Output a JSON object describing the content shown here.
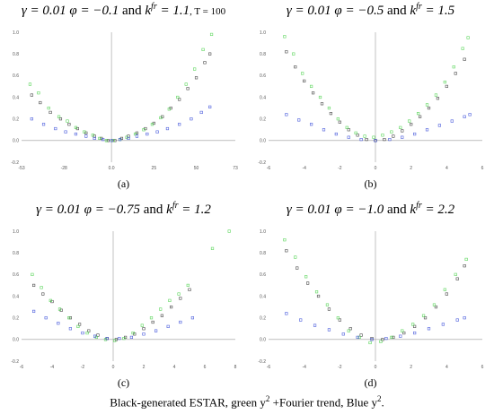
{
  "figure": {
    "caption_text": "Black-generated ESTAR, green y",
    "caption_sup1": "2",
    "caption_mid": " +Fourier trend, Blue y",
    "caption_sup2": "2",
    "caption_end": "."
  },
  "colors": {
    "black": "#2b2b2b",
    "green": "#3fcf3f",
    "blue": "#2a3fd6",
    "axis": "#9a9a9a"
  },
  "chart_data": [
    {
      "type": "scatter",
      "label": "(a)",
      "title_gamma": "γ = 0.01",
      "title_phi": "φ = −0.1",
      "title_and": "and",
      "title_k": "k",
      "title_ksup": "fr",
      "title_kval": "= 1.1",
      "title_extra": ", T = 100",
      "xlim": [
        -53,
        73
      ],
      "ylim": [
        -0.2,
        1.0
      ],
      "xticks": [
        -53,
        -28,
        0,
        25,
        50,
        73
      ],
      "xtick_labels": [
        "-53",
        "-28",
        "0.0",
        "25",
        "50",
        "73"
      ],
      "yticks": [
        -0.2,
        0.0,
        0.2,
        0.4,
        0.6,
        0.8,
        1.0
      ],
      "ytick_labels": [
        "-0.2",
        "0.0",
        "0.2",
        "0.4",
        "0.6",
        "0.8",
        "1.0"
      ],
      "grid": false,
      "series": [
        {
          "color_key": "black",
          "x": [
            -47,
            -42,
            -36,
            -30,
            -25,
            -20,
            -15,
            -10,
            -6,
            -2,
            2,
            6,
            10,
            15,
            20,
            25,
            30,
            35,
            40,
            45,
            50,
            55,
            58
          ],
          "y": [
            0.42,
            0.35,
            0.26,
            0.2,
            0.15,
            0.11,
            0.07,
            0.04,
            0.02,
            0.0,
            0.0,
            0.02,
            0.04,
            0.07,
            0.11,
            0.16,
            0.22,
            0.3,
            0.38,
            0.48,
            0.58,
            0.72,
            0.8
          ]
        },
        {
          "color_key": "green",
          "x": [
            -48,
            -43,
            -37,
            -31,
            -26,
            -21,
            -16,
            -11,
            -7,
            -3,
            1,
            5,
            9,
            14,
            19,
            24,
            29,
            34,
            39,
            44,
            49,
            54,
            59
          ],
          "y": [
            0.52,
            0.44,
            0.3,
            0.22,
            0.18,
            0.12,
            0.08,
            0.05,
            0.02,
            0.0,
            0.0,
            0.01,
            0.03,
            0.06,
            0.1,
            0.15,
            0.21,
            0.29,
            0.4,
            0.52,
            0.66,
            0.84,
            0.98
          ]
        },
        {
          "color_key": "blue",
          "x": [
            -47,
            -40,
            -33,
            -27,
            -21,
            -15,
            -10,
            -5,
            0,
            5,
            10,
            15,
            21,
            27,
            33,
            40,
            47,
            53,
            58
          ],
          "y": [
            0.2,
            0.15,
            0.11,
            0.08,
            0.06,
            0.04,
            0.02,
            0.01,
            0.0,
            0.01,
            0.02,
            0.04,
            0.06,
            0.08,
            0.11,
            0.15,
            0.2,
            0.26,
            0.31
          ]
        }
      ]
    },
    {
      "type": "scatter",
      "label": "(b)",
      "title_gamma": "γ = 0.01",
      "title_phi": "φ = −0.5",
      "title_and": "and",
      "title_k": "k",
      "title_ksup": "fr",
      "title_kval": "= 1.5",
      "title_extra": "",
      "xlim": [
        -6,
        6
      ],
      "ylim": [
        -0.2,
        1.0
      ],
      "xticks": [
        -6,
        -4,
        -2,
        0,
        2,
        4,
        6
      ],
      "xtick_labels": [
        "-6",
        "-4",
        "-2",
        "0",
        "2",
        "4",
        "6"
      ],
      "yticks": [
        -0.2,
        0.0,
        0.2,
        0.4,
        0.6,
        0.8,
        1.0
      ],
      "ytick_labels": [
        "-0.2",
        "0.0",
        "0.2",
        "0.4",
        "0.6",
        "0.8",
        "1.0"
      ],
      "grid": false,
      "series": [
        {
          "color_key": "black",
          "x": [
            -5.0,
            -4.5,
            -4.0,
            -3.5,
            -3.0,
            -2.5,
            -2.0,
            -1.5,
            -1.0,
            -0.5,
            0.0,
            0.5,
            1.0,
            1.5,
            2.0,
            2.5,
            3.0,
            3.5,
            4.0,
            4.5,
            5.0
          ],
          "y": [
            0.82,
            0.68,
            0.55,
            0.44,
            0.34,
            0.25,
            0.17,
            0.1,
            0.05,
            0.01,
            0.0,
            0.01,
            0.04,
            0.09,
            0.15,
            0.22,
            0.3,
            0.39,
            0.5,
            0.62,
            0.75
          ]
        },
        {
          "color_key": "green",
          "x": [
            -5.1,
            -4.6,
            -4.1,
            -3.6,
            -3.1,
            -2.6,
            -2.1,
            -1.6,
            -1.1,
            -0.6,
            -0.1,
            0.4,
            0.9,
            1.4,
            1.9,
            2.4,
            2.9,
            3.4,
            3.9,
            4.4,
            4.9,
            5.2
          ],
          "y": [
            0.96,
            0.8,
            0.62,
            0.5,
            0.4,
            0.3,
            0.2,
            0.12,
            0.07,
            0.04,
            0.03,
            0.05,
            0.08,
            0.12,
            0.18,
            0.25,
            0.33,
            0.42,
            0.54,
            0.68,
            0.85,
            0.95
          ]
        },
        {
          "color_key": "blue",
          "x": [
            -5.0,
            -4.3,
            -3.6,
            -2.9,
            -2.2,
            -1.5,
            -0.8,
            0.0,
            0.8,
            1.5,
            2.2,
            2.9,
            3.6,
            4.3,
            5.0,
            5.3
          ],
          "y": [
            0.24,
            0.19,
            0.15,
            0.1,
            0.06,
            0.03,
            0.01,
            0.0,
            0.01,
            0.03,
            0.06,
            0.1,
            0.14,
            0.18,
            0.22,
            0.24
          ]
        }
      ]
    },
    {
      "type": "scatter",
      "label": "(c)",
      "title_gamma": "γ = 0.01",
      "title_phi": "φ = −0.75",
      "title_and": "and",
      "title_k": "k",
      "title_ksup": "fr",
      "title_kval": "= 1.2",
      "title_extra": "",
      "xlim": [
        -6,
        8
      ],
      "ylim": [
        -0.2,
        1.0
      ],
      "xticks": [
        -6,
        -4,
        -2,
        0,
        2,
        4,
        6,
        8
      ],
      "xtick_labels": [
        "-6",
        "-4",
        "-2",
        "0",
        "2",
        "4",
        "6",
        "8"
      ],
      "yticks": [
        -0.2,
        0.0,
        0.2,
        0.4,
        0.6,
        0.8,
        1.0
      ],
      "ytick_labels": [
        "-0.2",
        "0.0",
        "0.2",
        "0.4",
        "0.6",
        "0.8",
        "1.0"
      ],
      "grid": false,
      "series": [
        {
          "color_key": "black",
          "x": [
            -5.2,
            -4.6,
            -4.0,
            -3.4,
            -2.8,
            -2.2,
            -1.6,
            -1.0,
            -0.4,
            0.2,
            0.8,
            1.4,
            2.0,
            2.6,
            3.2,
            3.8,
            4.4,
            5.0
          ],
          "y": [
            0.5,
            0.42,
            0.35,
            0.27,
            0.2,
            0.14,
            0.08,
            0.04,
            0.01,
            0.0,
            0.02,
            0.05,
            0.1,
            0.16,
            0.22,
            0.3,
            0.38,
            0.46
          ]
        },
        {
          "color_key": "green",
          "x": [
            -5.3,
            -4.7,
            -4.1,
            -3.5,
            -2.9,
            -2.3,
            -1.7,
            -1.1,
            -0.5,
            0.1,
            0.7,
            1.3,
            1.9,
            2.5,
            3.1,
            3.7,
            4.3,
            4.9,
            6.5,
            7.6
          ],
          "y": [
            0.6,
            0.48,
            0.36,
            0.28,
            0.2,
            0.12,
            0.06,
            0.02,
            0.0,
            -0.01,
            0.01,
            0.06,
            0.13,
            0.2,
            0.28,
            0.36,
            0.42,
            0.5,
            0.84,
            1.0
          ]
        },
        {
          "color_key": "blue",
          "x": [
            -5.2,
            -4.4,
            -3.6,
            -2.8,
            -2.0,
            -1.2,
            -0.4,
            0.4,
            1.2,
            2.0,
            2.8,
            3.6,
            4.4,
            5.2
          ],
          "y": [
            0.26,
            0.2,
            0.15,
            0.1,
            0.06,
            0.03,
            0.01,
            0.01,
            0.02,
            0.05,
            0.08,
            0.12,
            0.16,
            0.2
          ]
        }
      ]
    },
    {
      "type": "scatter",
      "label": "(d)",
      "title_gamma": "γ = 0.01",
      "title_phi": "φ = −1.0",
      "title_and": "and",
      "title_k": "k",
      "title_ksup": "fr",
      "title_kval": "= 2.2",
      "title_extra": "",
      "xlim": [
        -6,
        6
      ],
      "ylim": [
        -0.2,
        1.0
      ],
      "xticks": [
        -6,
        -4,
        -2,
        0,
        2,
        4,
        6
      ],
      "xtick_labels": [
        "-6",
        "-4",
        "-2",
        "0",
        "2",
        "4",
        "6"
      ],
      "yticks": [
        -0.2,
        0.0,
        0.2,
        0.4,
        0.6,
        0.8,
        1.0
      ],
      "ytick_labels": [
        "-0.2",
        "0.0",
        "0.2",
        "0.4",
        "0.6",
        "0.8",
        "1.0"
      ],
      "grid": false,
      "series": [
        {
          "color_key": "black",
          "x": [
            -5.0,
            -4.4,
            -3.8,
            -3.2,
            -2.6,
            -2.0,
            -1.4,
            -0.8,
            -0.2,
            0.4,
            1.0,
            1.6,
            2.2,
            2.8,
            3.4,
            4.0,
            4.6,
            5.0
          ],
          "y": [
            0.82,
            0.66,
            0.52,
            0.4,
            0.28,
            0.18,
            0.1,
            0.04,
            0.01,
            0.0,
            0.02,
            0.06,
            0.12,
            0.2,
            0.3,
            0.42,
            0.56,
            0.68
          ]
        },
        {
          "color_key": "green",
          "x": [
            -5.1,
            -4.5,
            -3.9,
            -3.3,
            -2.7,
            -2.1,
            -1.5,
            -0.9,
            -0.3,
            0.3,
            0.9,
            1.5,
            2.1,
            2.7,
            3.3,
            3.9,
            4.5,
            5.1
          ],
          "y": [
            0.92,
            0.76,
            0.58,
            0.44,
            0.32,
            0.2,
            0.08,
            0.02,
            -0.03,
            -0.02,
            0.02,
            0.08,
            0.14,
            0.22,
            0.32,
            0.46,
            0.6,
            0.74
          ]
        },
        {
          "color_key": "blue",
          "x": [
            -5.0,
            -4.2,
            -3.4,
            -2.6,
            -1.8,
            -1.0,
            -0.2,
            0.6,
            1.4,
            2.2,
            3.0,
            3.8,
            4.6,
            5.0
          ],
          "y": [
            0.24,
            0.18,
            0.13,
            0.09,
            0.05,
            0.02,
            0.0,
            0.01,
            0.03,
            0.06,
            0.1,
            0.14,
            0.18,
            0.2
          ]
        }
      ]
    }
  ]
}
